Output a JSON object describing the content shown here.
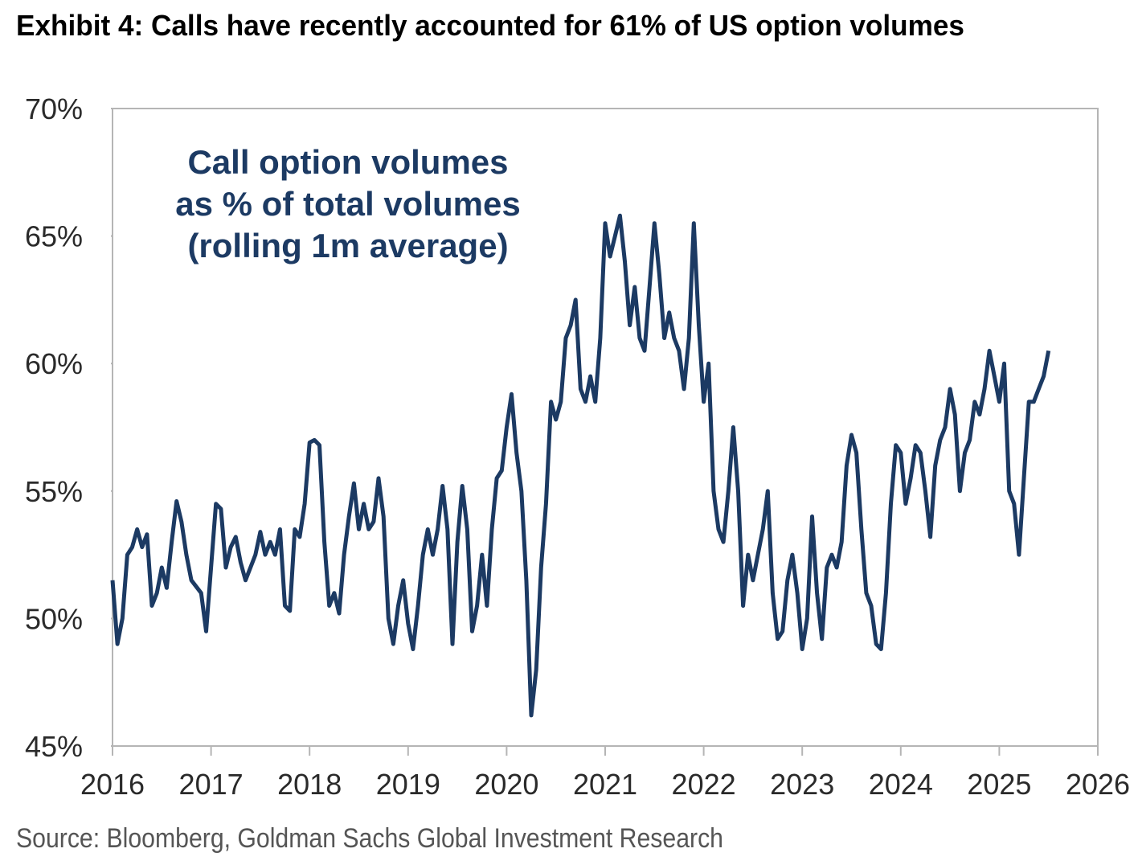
{
  "chart_data": {
    "type": "line",
    "title": "Exhibit 4: Calls have recently accounted for 61% of US option volumes",
    "annotation": [
      "Call option volumes",
      "as % of total volumes",
      "(rolling 1m average)"
    ],
    "source": "Source: Bloomberg, Goldman Sachs Global Investment Research",
    "xlim": [
      2016,
      2026
    ],
    "xticks": [
      2016,
      2017,
      2018,
      2019,
      2020,
      2021,
      2022,
      2023,
      2024,
      2025,
      2026
    ],
    "ylim": [
      45,
      70
    ],
    "yticks": [
      {
        "value": 45,
        "label": "45%"
      },
      {
        "value": 50,
        "label": "50%"
      },
      {
        "value": 55,
        "label": "55%"
      },
      {
        "value": 60,
        "label": "60%"
      },
      {
        "value": 65,
        "label": "65%"
      },
      {
        "value": 70,
        "label": "70%"
      }
    ],
    "series": [
      {
        "color": "#1c3a63",
        "x": [
          2016.0,
          2016.05,
          2016.1,
          2016.15,
          2016.2,
          2016.25,
          2016.3,
          2016.35,
          2016.4,
          2016.45,
          2016.5,
          2016.55,
          2016.6,
          2016.65,
          2016.7,
          2016.75,
          2016.8,
          2016.9,
          2016.95,
          2017.0,
          2017.05,
          2017.1,
          2017.15,
          2017.2,
          2017.25,
          2017.3,
          2017.35,
          2017.45,
          2017.5,
          2017.55,
          2017.6,
          2017.65,
          2017.7,
          2017.75,
          2017.8,
          2017.85,
          2017.9,
          2017.95,
          2018.0,
          2018.05,
          2018.1,
          2018.15,
          2018.2,
          2018.25,
          2018.3,
          2018.35,
          2018.4,
          2018.45,
          2018.5,
          2018.55,
          2018.6,
          2018.65,
          2018.7,
          2018.75,
          2018.8,
          2018.85,
          2018.9,
          2018.95,
          2019.0,
          2019.05,
          2019.1,
          2019.15,
          2019.2,
          2019.25,
          2019.3,
          2019.35,
          2019.4,
          2019.45,
          2019.5,
          2019.55,
          2019.6,
          2019.65,
          2019.7,
          2019.75,
          2019.8,
          2019.85,
          2019.9,
          2019.95,
          2020.0,
          2020.05,
          2020.1,
          2020.15,
          2020.2,
          2020.25,
          2020.3,
          2020.35,
          2020.4,
          2020.45,
          2020.5,
          2020.55,
          2020.6,
          2020.65,
          2020.7,
          2020.75,
          2020.8,
          2020.85,
          2020.9,
          2020.95,
          2021.0,
          2021.05,
          2021.1,
          2021.15,
          2021.2,
          2021.25,
          2021.3,
          2021.35,
          2021.4,
          2021.45,
          2021.5,
          2021.55,
          2021.6,
          2021.65,
          2021.7,
          2021.75,
          2021.8,
          2021.85,
          2021.9,
          2021.95,
          2022.0,
          2022.05,
          2022.1,
          2022.15,
          2022.2,
          2022.25,
          2022.3,
          2022.35,
          2022.4,
          2022.45,
          2022.5,
          2022.55,
          2022.6,
          2022.65,
          2022.7,
          2022.75,
          2022.8,
          2022.85,
          2022.9,
          2022.95,
          2023.0,
          2023.05,
          2023.1,
          2023.15,
          2023.2,
          2023.25,
          2023.3,
          2023.35,
          2023.4,
          2023.45,
          2023.5,
          2023.55,
          2023.6,
          2023.65,
          2023.7,
          2023.75,
          2023.8,
          2023.85,
          2023.9,
          2023.95,
          2024.0,
          2024.05,
          2024.1,
          2024.15,
          2024.2,
          2024.25,
          2024.3,
          2024.35,
          2024.4,
          2024.45,
          2024.5,
          2024.55,
          2024.6,
          2024.65,
          2024.7,
          2024.75,
          2024.8,
          2024.85,
          2024.9,
          2024.95,
          2025.0,
          2025.05,
          2025.1,
          2025.15,
          2025.2,
          2025.25,
          2025.3,
          2025.35,
          2025.4,
          2025.45,
          2025.5
        ],
        "values": [
          51.5,
          49,
          50,
          52.5,
          52.8,
          53.5,
          52.8,
          53.3,
          50.5,
          51,
          52,
          51.2,
          53,
          54.6,
          53.8,
          52.5,
          51.5,
          51,
          49.5,
          52,
          54.5,
          54.3,
          52,
          52.8,
          53.2,
          52.2,
          51.5,
          52.5,
          53.4,
          52.5,
          53,
          52.5,
          53.5,
          50.5,
          50.3,
          53.5,
          53.2,
          54.5,
          56.9,
          57,
          56.8,
          53,
          50.5,
          51,
          50.2,
          52.5,
          54,
          55.3,
          53.5,
          54.5,
          53.5,
          53.8,
          55.5,
          54,
          50,
          49,
          50.5,
          51.5,
          49.8,
          48.8,
          50.5,
          52.5,
          53.5,
          52.5,
          53.5,
          55.2,
          53.5,
          49,
          53,
          55.2,
          53.5,
          49.5,
          50.5,
          52.5,
          50.5,
          53.5,
          55.5,
          55.8,
          57.5,
          58.8,
          56.5,
          55,
          51.5,
          46.2,
          48,
          52,
          54.5,
          58.5,
          57.8,
          58.5,
          61,
          61.5,
          62.5,
          59,
          58.5,
          59.5,
          58.5,
          61,
          65.5,
          64.2,
          65,
          65.8,
          64,
          61.5,
          63,
          61,
          60.5,
          63,
          65.5,
          63.5,
          61,
          62,
          61,
          60.5,
          59,
          61,
          65.5,
          61.5,
          58.5,
          60,
          55,
          53.5,
          53,
          55,
          57.5,
          55,
          50.5,
          52.5,
          51.5,
          52.5,
          53.5,
          55,
          51,
          49.2,
          49.5,
          51.5,
          52.5,
          51,
          48.8,
          50,
          54,
          51,
          49.2,
          52,
          52.5,
          52,
          53,
          56,
          57.2,
          56.5,
          53.5,
          51,
          50.5,
          49,
          48.8,
          51,
          54.5,
          56.8,
          56.5,
          54.5,
          55.5,
          56.8,
          56.5,
          55,
          53.2,
          56,
          57,
          57.5,
          59,
          58,
          55,
          56.5,
          57,
          58.5,
          58,
          59,
          60.5,
          59.5,
          58.5,
          60,
          55,
          54.5,
          52.5,
          55.5,
          58.5,
          58.5,
          59,
          59.5,
          60.5
        ]
      }
    ]
  }
}
